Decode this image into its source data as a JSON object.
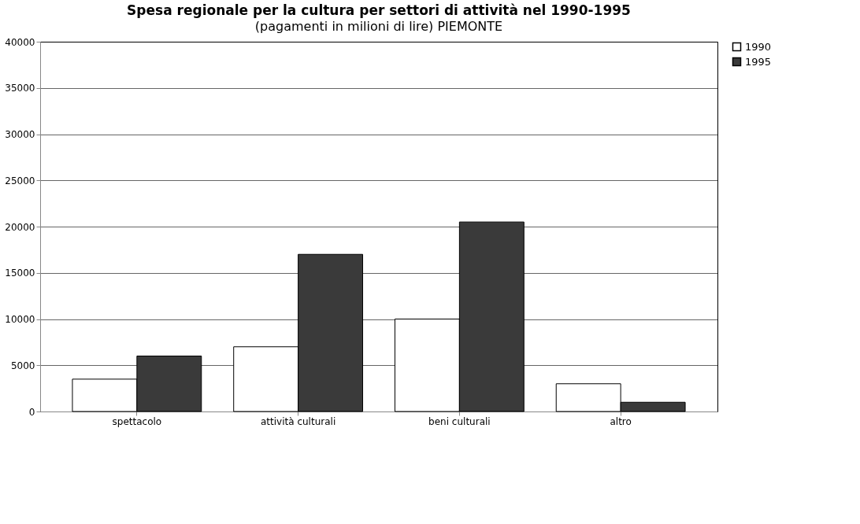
{
  "chart_data": {
    "type": "bar",
    "title": "Spesa regionale per la cultura per settori di attività nel 1990-1995",
    "subtitle": "(pagamenti in milioni di lire) PIEMONTE",
    "categories": [
      "spettacolo",
      "attività culturali",
      "beni culturali",
      "altro"
    ],
    "series": [
      {
        "name": "1990",
        "color": "#ffffff",
        "values": [
          3500,
          7000,
          10000,
          3000
        ]
      },
      {
        "name": "1995",
        "color": "#3a3a3a",
        "values": [
          6000,
          17000,
          20500,
          1000
        ]
      }
    ],
    "ylim": [
      0,
      40000
    ],
    "yticks": [
      0,
      5000,
      10000,
      15000,
      20000,
      25000,
      30000,
      35000,
      40000
    ],
    "grid": "y",
    "legend": "right"
  }
}
